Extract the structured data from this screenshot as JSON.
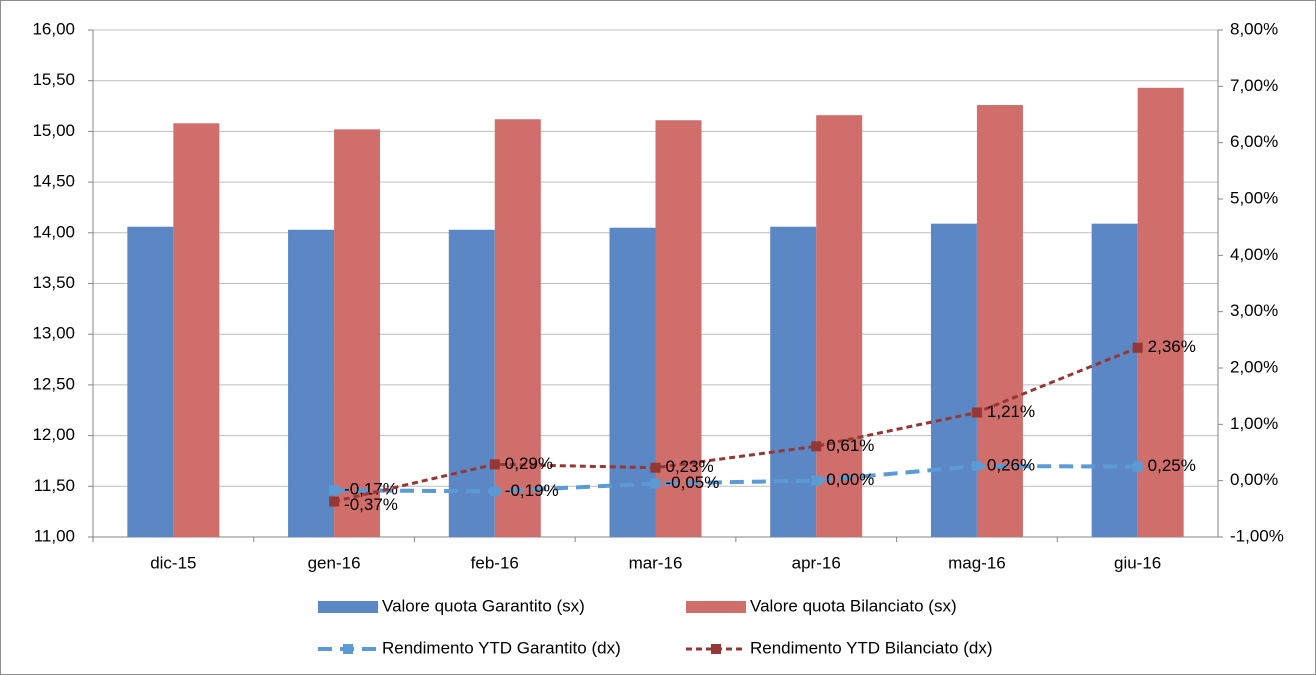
{
  "chart_data": {
    "type": "bar_line",
    "categories": [
      "dic-15",
      "gen-16",
      "feb-16",
      "mar-16",
      "apr-16",
      "mag-16",
      "giu-16"
    ],
    "series": [
      {
        "name": "Valore quota Garantito (sx)",
        "type": "bar",
        "color": "#5b87c4",
        "values": [
          14.06,
          14.03,
          14.03,
          14.05,
          14.06,
          14.09,
          14.09
        ]
      },
      {
        "name": "Valore quota Bilanciato (sx)",
        "type": "bar",
        "color": "#cf6e6b",
        "values": [
          15.08,
          15.02,
          15.12,
          15.11,
          15.16,
          15.26,
          15.43
        ]
      },
      {
        "name": "Rendimento YTD Garantito (dx)",
        "type": "line",
        "axis": "y2",
        "color": "#5b9bd5",
        "values": [
          null,
          -0.17,
          -0.19,
          -0.05,
          0.0,
          0.26,
          0.25
        ],
        "value_labels": [
          null,
          "-0,17%",
          "-0,19%",
          "-0,05%",
          "0,00%",
          "0,26%",
          "0,25%"
        ]
      },
      {
        "name": "Rendimento YTD Bilanciato (dx)",
        "type": "line",
        "axis": "y2",
        "color": "#953735",
        "values": [
          null,
          -0.37,
          0.29,
          0.23,
          0.61,
          1.21,
          2.36
        ],
        "value_labels": [
          null,
          "-0,37%",
          "0,29%",
          "0,23%",
          "0,61%",
          "1,21%",
          "2,36%"
        ]
      }
    ],
    "ylim": [
      11,
      16
    ],
    "yticks": [
      {
        "value": 11,
        "label": "11,00"
      },
      {
        "value": 11.5,
        "label": "11,50"
      },
      {
        "value": 12,
        "label": "12,00"
      },
      {
        "value": 12.5,
        "label": "12,50"
      },
      {
        "value": 13,
        "label": "13,00"
      },
      {
        "value": 13.5,
        "label": "13,50"
      },
      {
        "value": 14,
        "label": "14,00"
      },
      {
        "value": 14.5,
        "label": "14,50"
      },
      {
        "value": 15,
        "label": "15,00"
      },
      {
        "value": 15.5,
        "label": "15,50"
      },
      {
        "value": 16,
        "label": "16,00"
      }
    ],
    "y2lim": [
      -1,
      8
    ],
    "y2ticks": [
      {
        "value": -1,
        "label": "-1,00%"
      },
      {
        "value": 0,
        "label": "0,00%"
      },
      {
        "value": 1,
        "label": "1,00%"
      },
      {
        "value": 2,
        "label": "2,00%"
      },
      {
        "value": 3,
        "label": "3,00%"
      },
      {
        "value": 4,
        "label": "4,00%"
      },
      {
        "value": 5,
        "label": "5,00%"
      },
      {
        "value": 6,
        "label": "6,00%"
      },
      {
        "value": 7,
        "label": "7,00%"
      },
      {
        "value": 8,
        "label": "8,00%"
      }
    ],
    "grid": true,
    "legend": "bottom"
  }
}
